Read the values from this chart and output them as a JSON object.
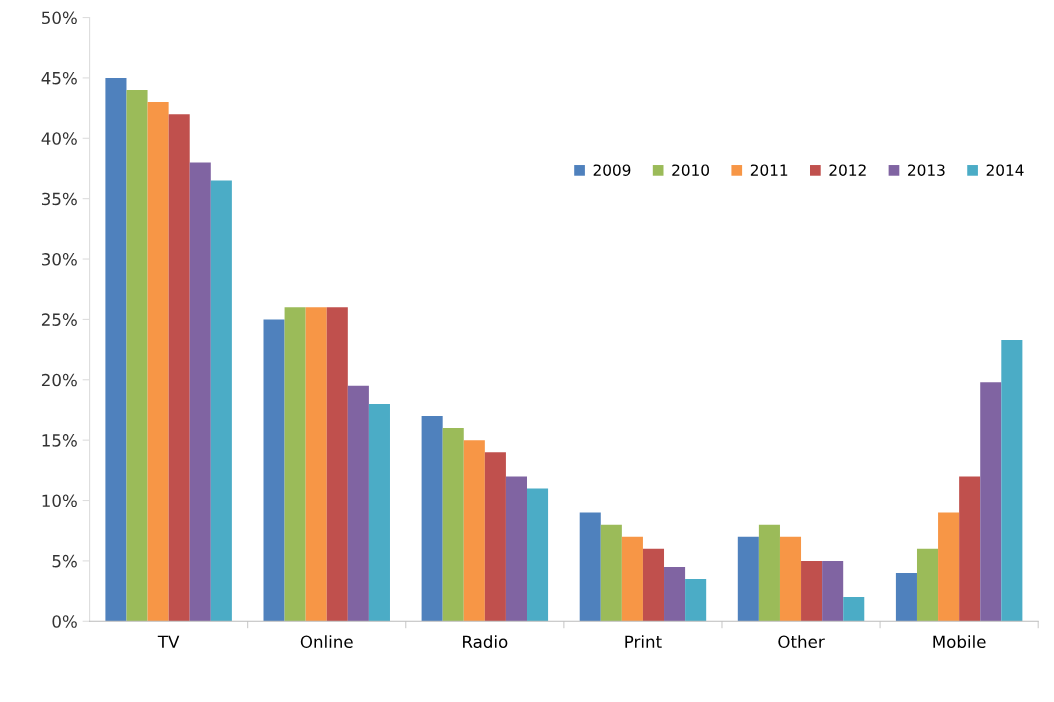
{
  "chart_data": {
    "type": "bar",
    "categories": [
      "TV",
      "Online",
      "Radio",
      "Print",
      "Other",
      "Mobile"
    ],
    "series": [
      {
        "name": "2009",
        "color": "#4f81bd",
        "values": [
          45,
          25,
          17,
          9,
          7,
          4
        ]
      },
      {
        "name": "2010",
        "color": "#9bbb59",
        "values": [
          44,
          26,
          16,
          8,
          8,
          6
        ]
      },
      {
        "name": "2011",
        "color": "#f79646",
        "values": [
          43,
          26,
          15,
          7,
          7,
          9
        ]
      },
      {
        "name": "2012",
        "color": "#c0504d",
        "values": [
          42,
          26,
          14,
          6,
          5,
          12
        ]
      },
      {
        "name": "2013",
        "color": "#8064a2",
        "values": [
          38,
          19.5,
          12,
          4.5,
          5,
          19.8
        ]
      },
      {
        "name": "2014",
        "color": "#4bacc6",
        "values": [
          36.5,
          18,
          11,
          3.5,
          2,
          23.3
        ]
      }
    ],
    "ylim": [
      0,
      50
    ],
    "yticks": [
      {
        "value": 0,
        "label": "0%"
      },
      {
        "value": 5,
        "label": "5%"
      },
      {
        "value": 10,
        "label": "10%"
      },
      {
        "value": 15,
        "label": "15%"
      },
      {
        "value": 20,
        "label": "20%"
      },
      {
        "value": 25,
        "label": "25%"
      },
      {
        "value": 30,
        "label": "30%"
      },
      {
        "value": 35,
        "label": "35%"
      },
      {
        "value": 40,
        "label": "40%"
      },
      {
        "value": 45,
        "label": "45%"
      },
      {
        "value": 50,
        "label": "50%"
      }
    ],
    "grid": false,
    "legend": "top right"
  }
}
